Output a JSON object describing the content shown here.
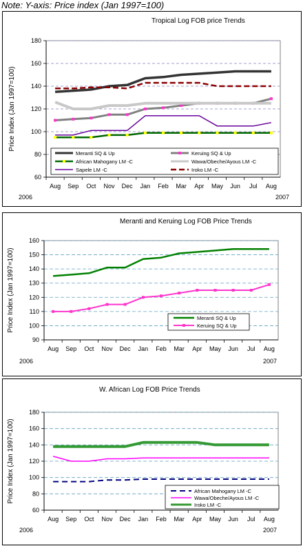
{
  "note": "Note: Y-axis: Price index (Jan 1997=100)",
  "chart_data": [
    {
      "type": "line",
      "title": "Tropical Log FOB price Trends",
      "ylabel": "Price Index (Jan 1997=100)",
      "xlabel": "",
      "categories": [
        "Aug",
        "Sep",
        "Oct",
        "Nov",
        "Dec",
        "Jan",
        "Feb",
        "Mar",
        "Apr",
        "May",
        "Jun",
        "Jul",
        "Aug"
      ],
      "year_labels": [
        "2006",
        "2007"
      ],
      "ylim": [
        60,
        180
      ],
      "yticks": [
        60,
        80,
        100,
        120,
        140,
        160,
        180
      ],
      "grid": true,
      "legend_position": "bottom",
      "series": [
        {
          "name": "Meranti SQ & Up",
          "color": "#333333",
          "width": 3.5,
          "dash": "",
          "marker": "",
          "values": [
            135,
            136,
            137,
            140,
            141,
            147,
            148,
            150,
            151,
            152,
            153,
            153,
            153
          ]
        },
        {
          "name": "Keruing SQ & Up",
          "color": "#808080",
          "width": 3,
          "dash": "",
          "marker": "#ff33cc",
          "values": [
            110,
            111,
            112,
            115,
            115,
            120,
            121,
            123,
            125,
            125,
            125,
            125,
            129
          ]
        },
        {
          "name": "African Mahogany LM -C",
          "color": "#006600",
          "width": 2.5,
          "dash": "",
          "marker": "#ffff00",
          "values": [
            95,
            95,
            95,
            97,
            97,
            99,
            99,
            99,
            99,
            99,
            99,
            99,
            99
          ]
        },
        {
          "name": "Wawa/Obeche/Ayous LM -C",
          "color": "#c8c8c8",
          "width": 4,
          "dash": "",
          "marker": "",
          "values": [
            126,
            120,
            120,
            123,
            123,
            125,
            125,
            125,
            125,
            125,
            125,
            125,
            125
          ]
        },
        {
          "name": "Sapele LM -C",
          "color": "#660099",
          "width": 1.5,
          "dash": "",
          "marker": "",
          "values": [
            97,
            97,
            101,
            101,
            101,
            114,
            114,
            114,
            114,
            105,
            105,
            105,
            108
          ]
        },
        {
          "name": "Iroko LM -C",
          "color": "#8b0000",
          "width": 2.5,
          "dash": "8,4",
          "marker": "",
          "values": [
            138,
            138,
            139,
            139,
            138,
            143,
            143,
            143,
            143,
            140,
            140,
            140,
            140
          ]
        }
      ]
    },
    {
      "type": "line",
      "title": "Meranti and Keruing Log FOB Price Trends",
      "ylabel": "Price Index (Jan 1997=100)",
      "xlabel": "",
      "categories": [
        "Aug",
        "Sep",
        "Oct",
        "Nov",
        "Dec",
        "Jan",
        "Feb",
        "Mar",
        "Apr",
        "May",
        "Jun",
        "Jul",
        "Aug"
      ],
      "year_labels": [
        "2006",
        "2007"
      ],
      "ylim": [
        90,
        160
      ],
      "yticks": [
        90,
        100,
        110,
        120,
        130,
        140,
        150,
        160
      ],
      "grid": true,
      "legend_position": "bottom-right",
      "series": [
        {
          "name": "Meranti SQ & Up",
          "color": "#008000",
          "width": 2.5,
          "dash": "",
          "marker": "",
          "values": [
            135,
            136,
            137,
            141,
            141,
            147,
            148,
            151,
            152,
            153,
            154,
            154,
            154
          ]
        },
        {
          "name": "Keruing SQ & Up",
          "color": "#ff33cc",
          "width": 2,
          "dash": "",
          "marker": "#ff33cc",
          "values": [
            110,
            110,
            112,
            115,
            115,
            120,
            121,
            123,
            125,
            125,
            125,
            125,
            129
          ]
        }
      ]
    },
    {
      "type": "line",
      "title": "W. African Log FOB Price Trends",
      "ylabel": "Price Index (Jan 1997=100)",
      "xlabel": "",
      "categories": [
        "Aug",
        "Sep",
        "Oct",
        "Nov",
        "Dec",
        "Jan",
        "Feb",
        "Mar",
        "Apr",
        "May",
        "Jun",
        "Jul",
        "Aug"
      ],
      "year_labels": [
        "2006",
        "2007"
      ],
      "ylim": [
        60,
        180
      ],
      "yticks": [
        60,
        80,
        100,
        120,
        140,
        160,
        180
      ],
      "grid": true,
      "legend_position": "bottom-right",
      "series": [
        {
          "name": "African Mahogany LM -C",
          "color": "#000080",
          "width": 2,
          "dash": "8,5",
          "marker": "",
          "values": [
            95,
            95,
            95,
            97,
            97,
            98,
            98,
            98,
            98,
            98,
            98,
            98,
            98
          ]
        },
        {
          "name": "Wawa/Obeche/Ayous LM -C",
          "color": "#ff00ff",
          "width": 1.5,
          "dash": "",
          "marker": "",
          "values": [
            126,
            120,
            120,
            123,
            123,
            124,
            124,
            124,
            124,
            124,
            124,
            124,
            124
          ]
        },
        {
          "name": "Iroko LM -C",
          "color": "#339933",
          "width": 4,
          "dash": "",
          "marker": "",
          "values": [
            138,
            138,
            138,
            138,
            138,
            143,
            143,
            143,
            143,
            140,
            140,
            140,
            140
          ]
        }
      ]
    }
  ]
}
